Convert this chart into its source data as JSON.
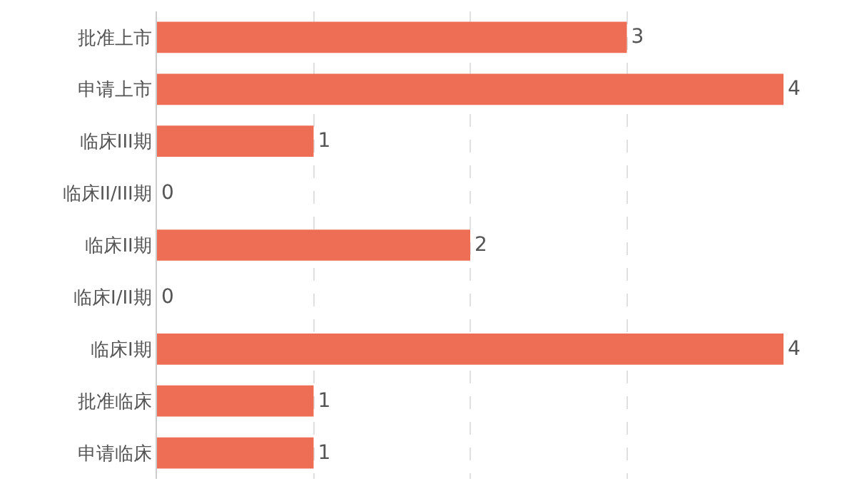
{
  "chart_data": {
    "type": "bar",
    "orientation": "horizontal",
    "categories": [
      "批准上市",
      "申请上市",
      "临床III期",
      "临床II/III期",
      "临床II期",
      "临床I/II期",
      "临床I期",
      "批准临床",
      "申请临床"
    ],
    "values": [
      3,
      4,
      1,
      0,
      2,
      0,
      4,
      1,
      1
    ],
    "color": "#ee6e55",
    "xlim": [
      0,
      4
    ],
    "xticks": [
      {
        "value": 1,
        "label": null
      },
      {
        "value": 2,
        "label": null
      },
      {
        "value": 3,
        "label": null
      }
    ],
    "tick_labels": "y",
    "grid": "x",
    "data_labels": true
  }
}
